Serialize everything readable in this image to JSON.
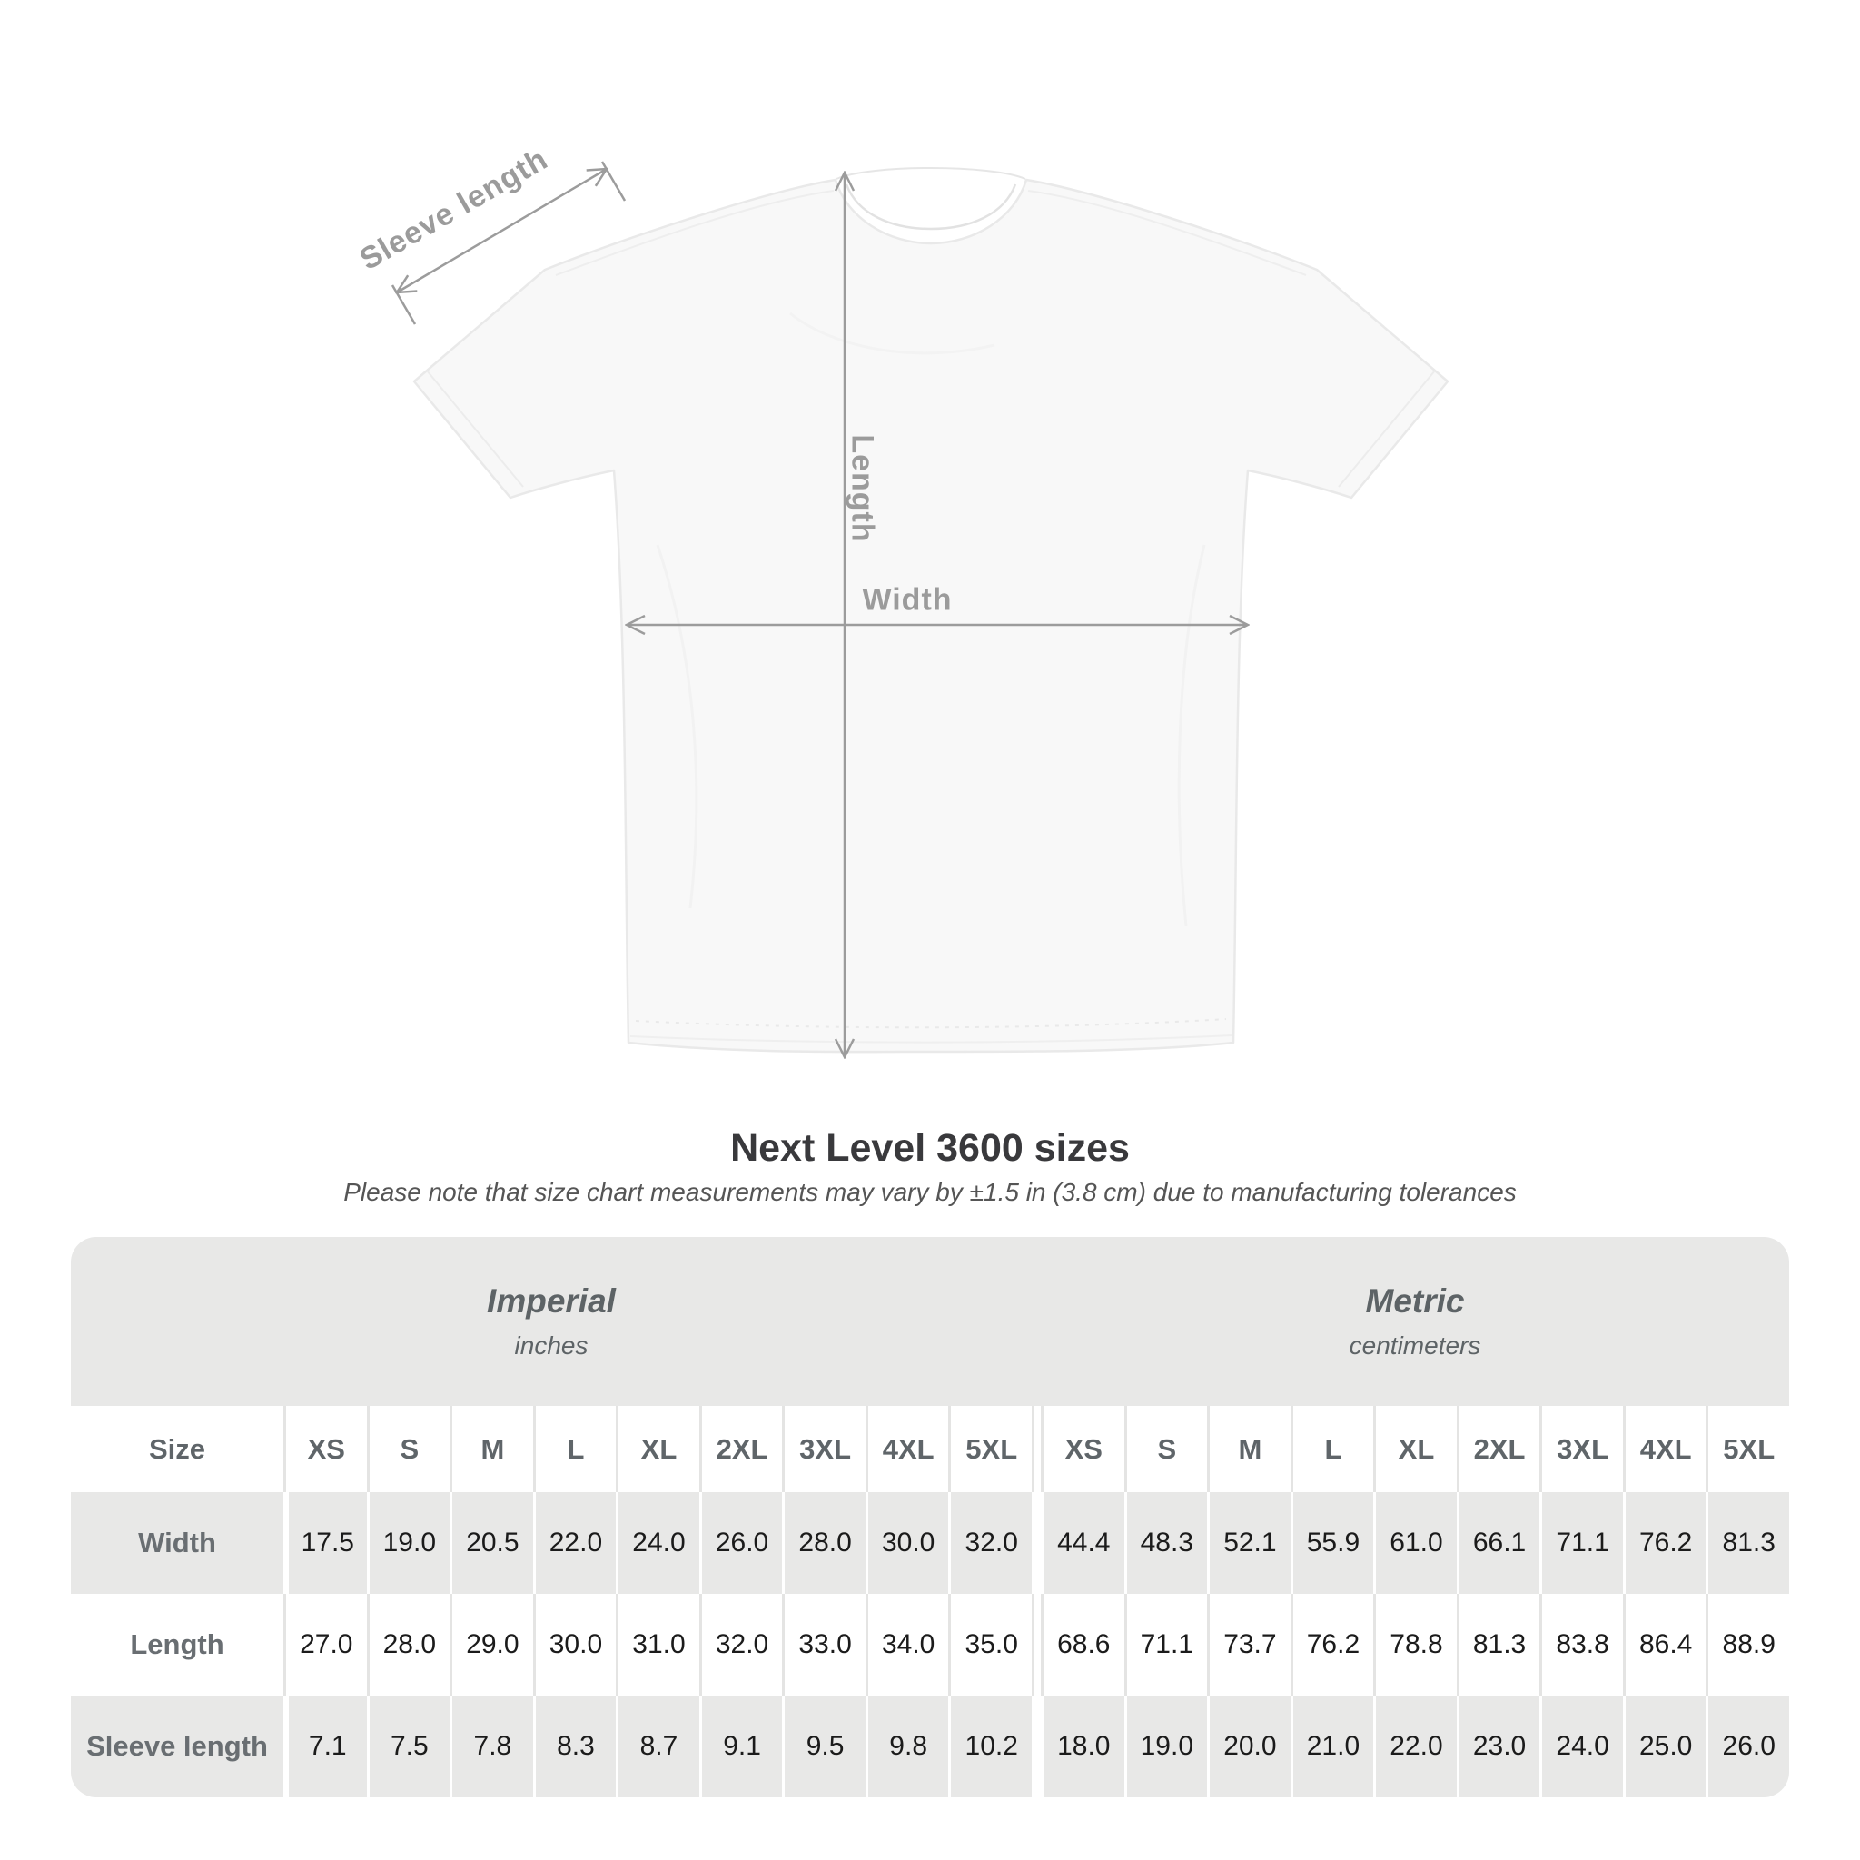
{
  "diagram": {
    "sleeve_length_label": "Sleeve length",
    "length_label": "Length",
    "width_label": "Width"
  },
  "heading": {
    "title": "Next Level 3600 sizes",
    "subtitle": "Please note that size chart measurements may vary by ±1.5 in (3.8 cm) due to manufacturing tolerances"
  },
  "table": {
    "size_header": "Size",
    "groups": [
      {
        "label": "Imperial",
        "sublabel": "inches"
      },
      {
        "label": "Metric",
        "sublabel": "centimeters"
      }
    ],
    "sizes": [
      "XS",
      "S",
      "M",
      "L",
      "XL",
      "2XL",
      "3XL",
      "4XL",
      "5XL"
    ],
    "rows": [
      {
        "label": "Width",
        "imperial": [
          "17.5",
          "19.0",
          "20.5",
          "22.0",
          "24.0",
          "26.0",
          "28.0",
          "30.0",
          "32.0"
        ],
        "metric": [
          "44.4",
          "48.3",
          "52.1",
          "55.9",
          "61.0",
          "66.1",
          "71.1",
          "76.2",
          "81.3"
        ]
      },
      {
        "label": "Length",
        "imperial": [
          "27.0",
          "28.0",
          "29.0",
          "30.0",
          "31.0",
          "32.0",
          "33.0",
          "34.0",
          "35.0"
        ],
        "metric": [
          "68.6",
          "71.1",
          "73.7",
          "76.2",
          "78.8",
          "81.3",
          "83.8",
          "86.4",
          "88.9"
        ]
      },
      {
        "label": "Sleeve length",
        "imperial": [
          "7.1",
          "7.5",
          "7.8",
          "8.3",
          "8.7",
          "9.1",
          "9.5",
          "9.8",
          "10.2"
        ],
        "metric": [
          "18.0",
          "19.0",
          "20.0",
          "21.0",
          "22.0",
          "23.0",
          "24.0",
          "25.0",
          "26.0"
        ]
      }
    ]
  },
  "colors": {
    "table_stripe": "#e8e8e7",
    "annotation_gray": "#9c9c9c",
    "value_text": "#1b1b1b"
  }
}
